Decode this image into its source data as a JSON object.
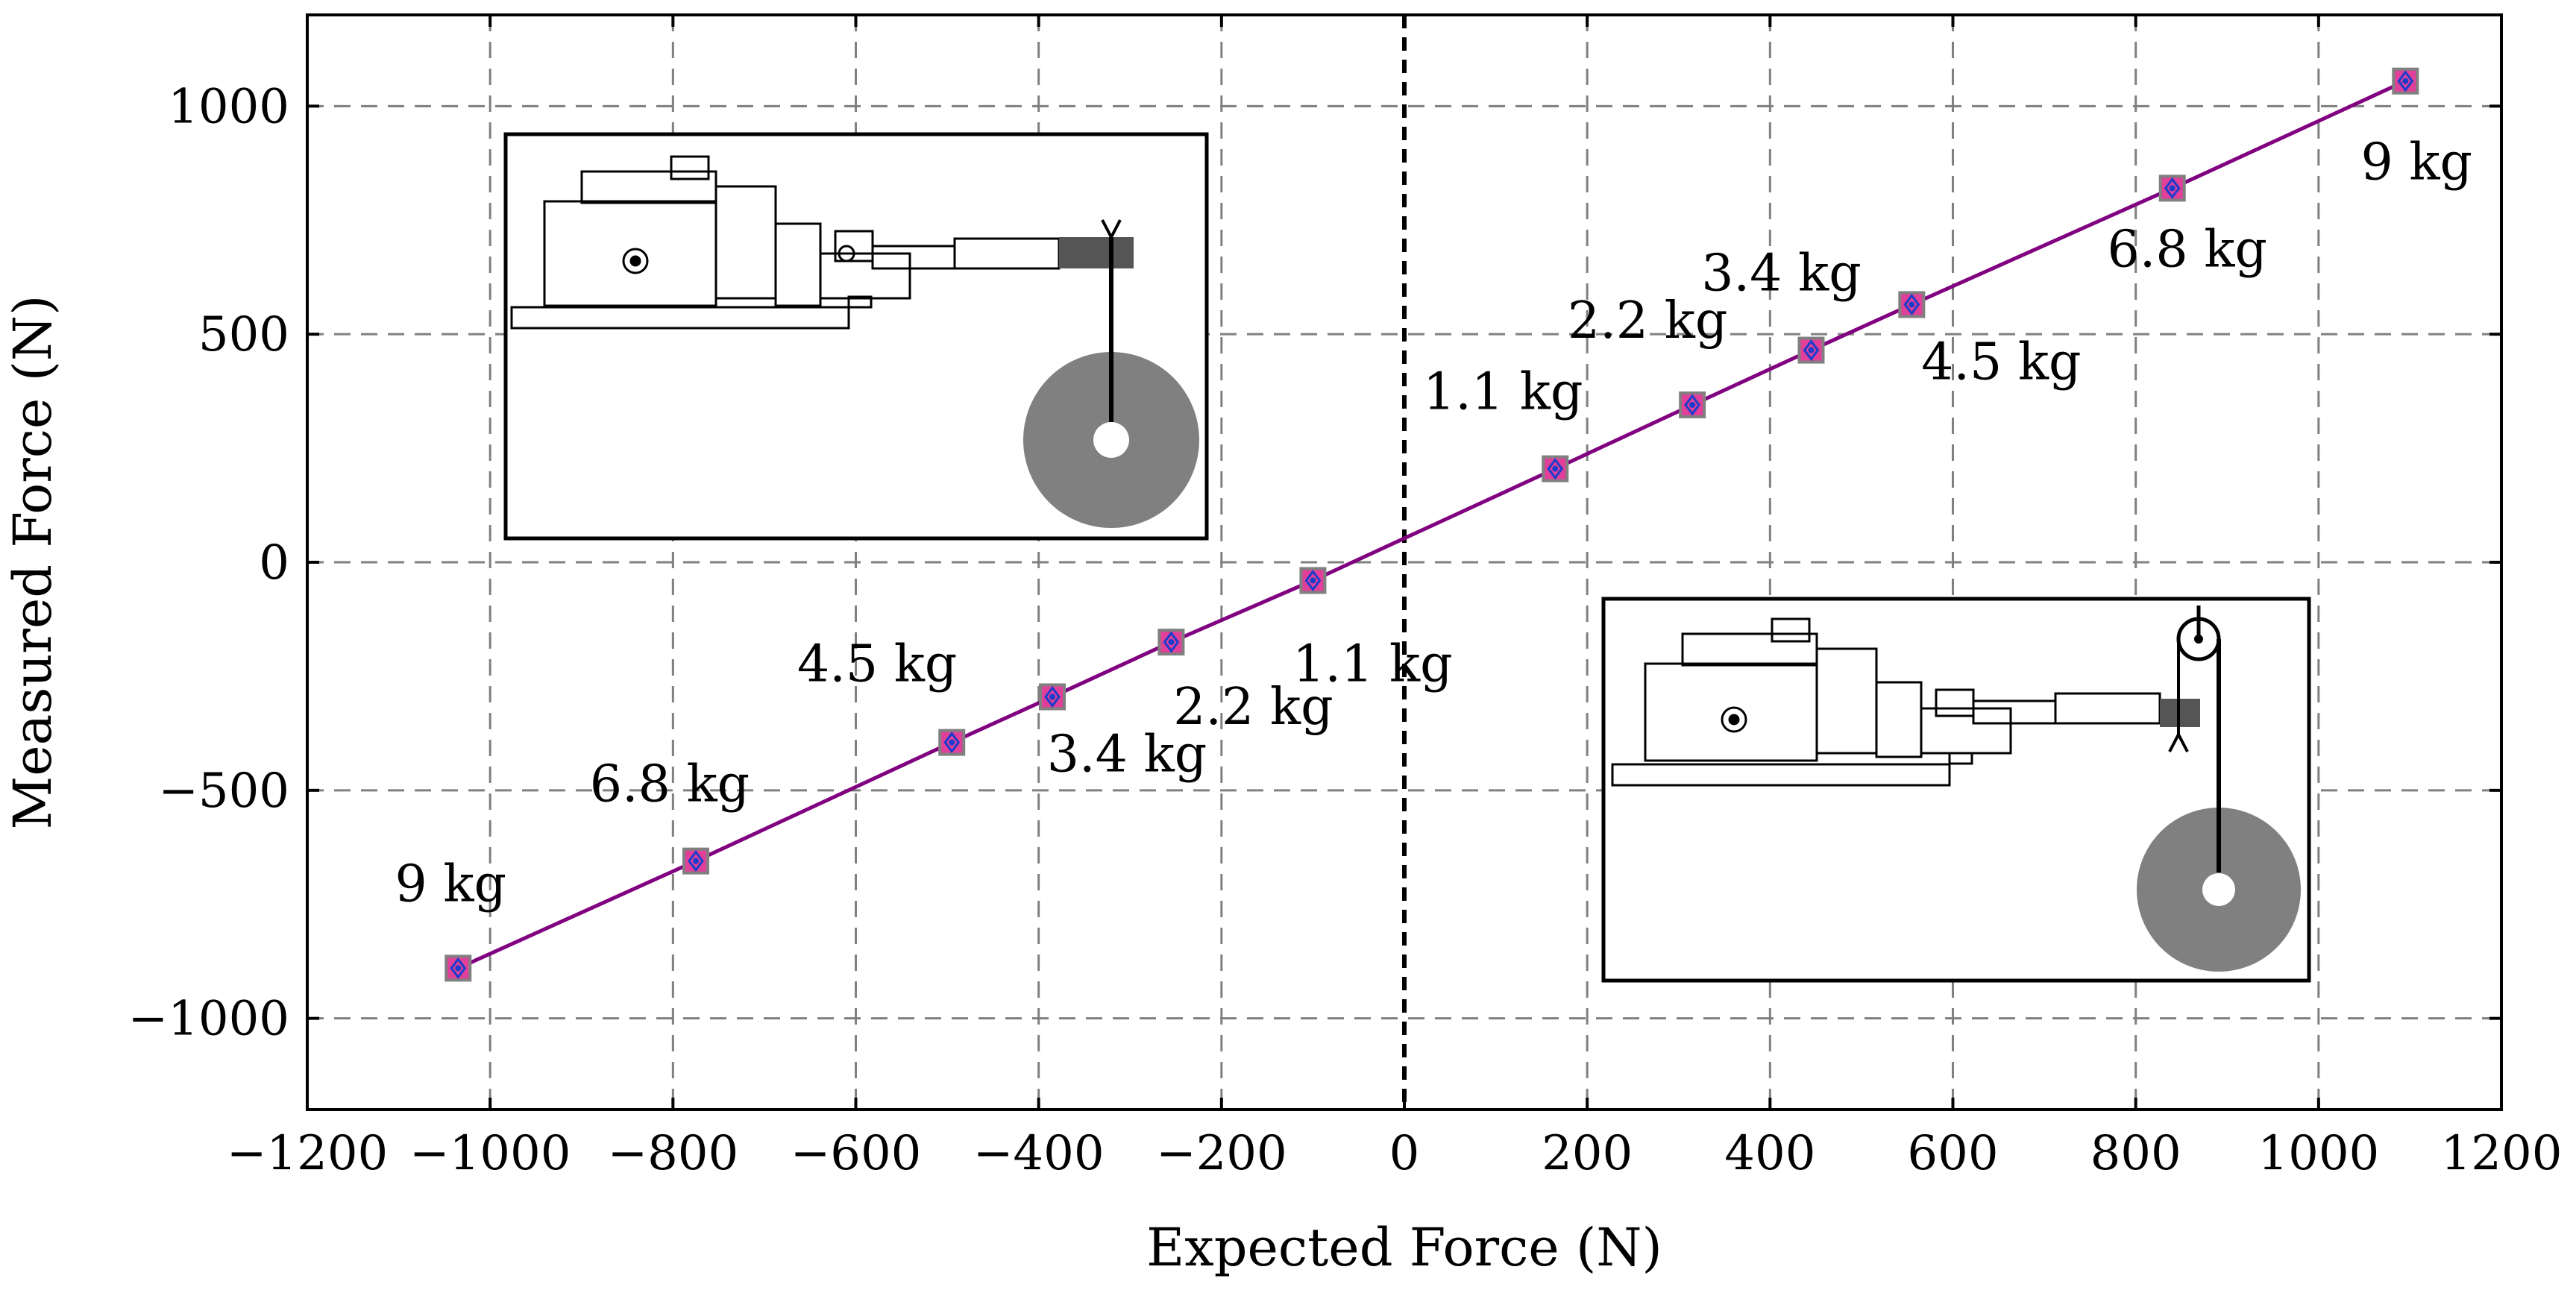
{
  "chart_data": {
    "type": "scatter",
    "xlabel": "Expected Force (N)",
    "ylabel": "Measured Force (N)",
    "xlim": [
      -1200,
      1200
    ],
    "ylim": [
      -1200,
      1200
    ],
    "x_ticks": [
      -1200,
      -1000,
      -800,
      -600,
      -400,
      -200,
      0,
      200,
      400,
      600,
      800,
      1000,
      1200
    ],
    "y_ticks": [
      -1000,
      -500,
      0,
      500,
      1000
    ],
    "x_tick_labels": [
      "−1200",
      "−1000",
      "−800",
      "−600",
      "−400",
      "−200",
      "0",
      "200",
      "400",
      "600",
      "800",
      "1000",
      "1200"
    ],
    "y_tick_labels": [
      "−1000",
      "−500",
      "0",
      "500",
      "1000"
    ],
    "grid": true,
    "zero_line": {
      "x": 0,
      "style": "dashed",
      "color": "#000000"
    },
    "line_color": "#800080",
    "marker_colors": {
      "square": "#e0409a",
      "outline": "#808080",
      "diamond": "#1a3ccc"
    },
    "points": [
      {
        "x": -1035,
        "y": -890,
        "label": "9 kg"
      },
      {
        "x": -775,
        "y": -655,
        "label": "6.8 kg"
      },
      {
        "x": -495,
        "y": -395,
        "label": "4.5 kg"
      },
      {
        "x": -385,
        "y": -295,
        "label": "3.4 kg"
      },
      {
        "x": -255,
        "y": -175,
        "label": "2.2 kg"
      },
      {
        "x": -100,
        "y": -40,
        "label": "1.1 kg"
      },
      {
        "x": 165,
        "y": 205,
        "label": "1.1 kg"
      },
      {
        "x": 315,
        "y": 345,
        "label": "2.2 kg"
      },
      {
        "x": 445,
        "y": 465,
        "label": "3.4 kg"
      },
      {
        "x": 555,
        "y": 565,
        "label": "4.5 kg"
      },
      {
        "x": 840,
        "y": 820,
        "label": "6.8 kg"
      },
      {
        "x": 1095,
        "y": 1055,
        "label": "9 kg"
      }
    ],
    "insets": [
      {
        "name": "tension-setup-inset",
        "weight_color": "#808080"
      },
      {
        "name": "compression-setup-inset",
        "weight_color": "#808080"
      }
    ]
  }
}
